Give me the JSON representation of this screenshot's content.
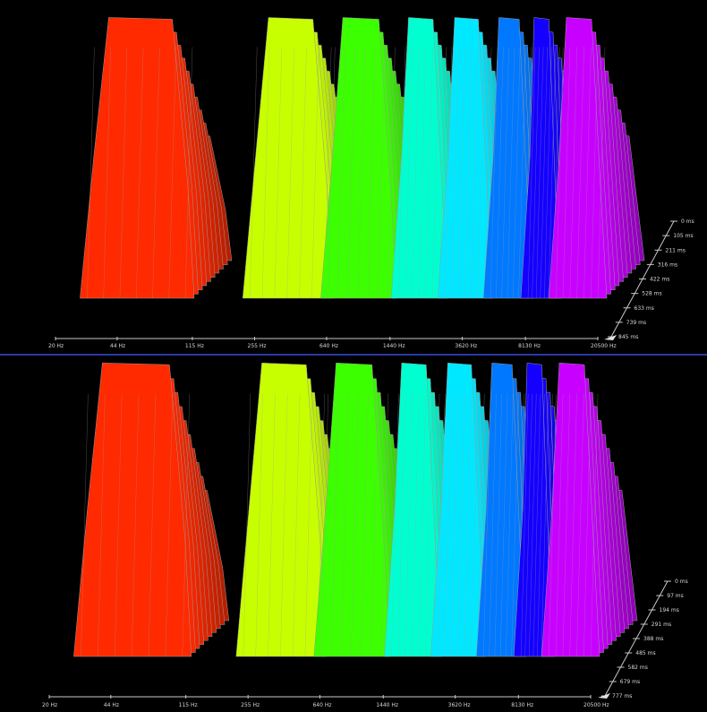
{
  "chart_data": [
    {
      "type": "area",
      "subtype": "3d-waterfall",
      "x_scale": "log",
      "x_ticks": [
        "20 Hz",
        "44 Hz",
        "115 Hz",
        "255 Hz",
        "640 Hz",
        "1440 Hz",
        "3620 Hz",
        "8130 Hz",
        "20500 Hz"
      ],
      "z_ticks": [
        "0 ms",
        "105 ms",
        "211 ms",
        "316 ms",
        "422 ms",
        "528 ms",
        "633 ms",
        "739 ms",
        "845 ms"
      ],
      "bands_hz": [
        {
          "lo": 30,
          "hi": 105,
          "color": "#ff2a00"
        },
        {
          "lo": 240,
          "hi": 620,
          "color": "#c8ff00"
        },
        {
          "lo": 650,
          "hi": 1400,
          "color": "#3cff00"
        },
        {
          "lo": 1600,
          "hi": 2700,
          "color": "#00ffd0"
        },
        {
          "lo": 2900,
          "hi": 4800,
          "color": "#00e8ff"
        },
        {
          "lo": 5200,
          "hi": 8000,
          "color": "#0078ff"
        },
        {
          "lo": 8400,
          "hi": 11500,
          "color": "#1400ff"
        },
        {
          "lo": 12000,
          "hi": 20500,
          "color": "#c800ff"
        }
      ]
    },
    {
      "type": "area",
      "subtype": "3d-waterfall",
      "x_scale": "log",
      "x_ticks": [
        "20 Hz",
        "44 Hz",
        "115 Hz",
        "255 Hz",
        "640 Hz",
        "1440 Hz",
        "3620 Hz",
        "8130 Hz",
        "20500 Hz"
      ],
      "z_ticks": [
        "0 ms",
        "97 ms",
        "194 ms",
        "291 ms",
        "388 ms",
        "485 ms",
        "582 ms",
        "679 ms",
        "777 ms"
      ],
      "bands_hz": [
        {
          "lo": 30,
          "hi": 110,
          "color": "#ff2a00"
        },
        {
          "lo": 240,
          "hi": 620,
          "color": "#c8ff00"
        },
        {
          "lo": 650,
          "hi": 1400,
          "color": "#3cff00"
        },
        {
          "lo": 1600,
          "hi": 2700,
          "color": "#00ffd0"
        },
        {
          "lo": 2900,
          "hi": 4800,
          "color": "#00e8ff"
        },
        {
          "lo": 5200,
          "hi": 8000,
          "color": "#0078ff"
        },
        {
          "lo": 8400,
          "hi": 11500,
          "color": "#1400ff"
        },
        {
          "lo": 12000,
          "hi": 20500,
          "color": "#c800ff"
        }
      ]
    }
  ]
}
